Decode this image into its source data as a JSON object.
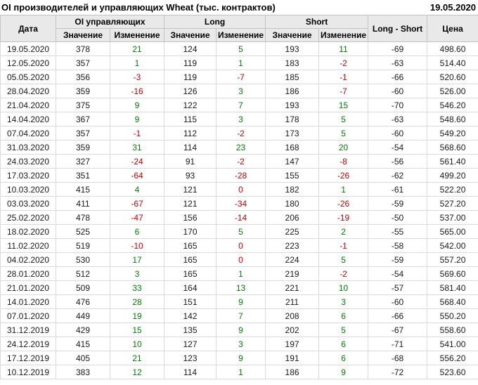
{
  "header": {
    "title": "OI производителей и управляющих Wheat (тыс. контрактов)",
    "report_date": "19.05.2020"
  },
  "colors": {
    "positive": "#008000",
    "negative": "#cc0000",
    "header_bg": "#e9e9e9",
    "grid_border": "#dadada"
  },
  "chart_data": {
    "type": "table",
    "title": "OI производителей и управляющих Wheat (тыс. контрактов)",
    "columns": {
      "date": "Дата",
      "group_oi": "OI управляющих",
      "group_long": "Long",
      "group_short": "Short",
      "sub_value": "Значение",
      "sub_change": "Изменение",
      "long_short": "Long - Short",
      "price": "Цена"
    },
    "rows": [
      {
        "date": "19.05.2020",
        "oi_value": 378,
        "oi_change": 21,
        "long_value": 124,
        "long_change": 5,
        "short_value": 193,
        "short_change": 11,
        "long_short": -69,
        "price": "498.60"
      },
      {
        "date": "12.05.2020",
        "oi_value": 357,
        "oi_change": 1,
        "long_value": 119,
        "long_change": 1,
        "short_value": 183,
        "short_change": -2,
        "long_short": -63,
        "price": "514.40"
      },
      {
        "date": "05.05.2020",
        "oi_value": 356,
        "oi_change": -3,
        "long_value": 119,
        "long_change": -7,
        "short_value": 185,
        "short_change": -1,
        "long_short": -66,
        "price": "520.60"
      },
      {
        "date": "28.04.2020",
        "oi_value": 359,
        "oi_change": -16,
        "long_value": 126,
        "long_change": 3,
        "short_value": 186,
        "short_change": -7,
        "long_short": -60,
        "price": "526.00"
      },
      {
        "date": "21.04.2020",
        "oi_value": 375,
        "oi_change": 9,
        "long_value": 122,
        "long_change": 7,
        "short_value": 193,
        "short_change": 15,
        "long_short": -70,
        "price": "546.20"
      },
      {
        "date": "14.04.2020",
        "oi_value": 367,
        "oi_change": 9,
        "long_value": 115,
        "long_change": 3,
        "short_value": 178,
        "short_change": 5,
        "long_short": -63,
        "price": "548.60"
      },
      {
        "date": "07.04.2020",
        "oi_value": 357,
        "oi_change": -1,
        "long_value": 112,
        "long_change": -2,
        "short_value": 173,
        "short_change": 5,
        "long_short": -60,
        "price": "549.20"
      },
      {
        "date": "31.03.2020",
        "oi_value": 359,
        "oi_change": 31,
        "long_value": 114,
        "long_change": 23,
        "short_value": 168,
        "short_change": 20,
        "long_short": -54,
        "price": "568.60"
      },
      {
        "date": "24.03.2020",
        "oi_value": 327,
        "oi_change": -24,
        "long_value": 91,
        "long_change": -2,
        "short_value": 147,
        "short_change": -8,
        "long_short": -56,
        "price": "561.40"
      },
      {
        "date": "17.03.2020",
        "oi_value": 351,
        "oi_change": -64,
        "long_value": 93,
        "long_change": -28,
        "short_value": 155,
        "short_change": -26,
        "long_short": -62,
        "price": "499.20"
      },
      {
        "date": "10.03.2020",
        "oi_value": 415,
        "oi_change": 4,
        "long_value": 121,
        "long_change": 0,
        "short_value": 182,
        "short_change": 1,
        "long_short": -61,
        "price": "522.20"
      },
      {
        "date": "03.03.2020",
        "oi_value": 411,
        "oi_change": -67,
        "long_value": 121,
        "long_change": -34,
        "short_value": 180,
        "short_change": -26,
        "long_short": -59,
        "price": "527.20"
      },
      {
        "date": "25.02.2020",
        "oi_value": 478,
        "oi_change": -47,
        "long_value": 156,
        "long_change": -14,
        "short_value": 206,
        "short_change": -19,
        "long_short": -50,
        "price": "537.00"
      },
      {
        "date": "18.02.2020",
        "oi_value": 525,
        "oi_change": 6,
        "long_value": 170,
        "long_change": 5,
        "short_value": 225,
        "short_change": 2,
        "long_short": -55,
        "price": "565.00"
      },
      {
        "date": "11.02.2020",
        "oi_value": 519,
        "oi_change": -10,
        "long_value": 165,
        "long_change": 0,
        "short_value": 223,
        "short_change": -1,
        "long_short": -58,
        "price": "542.00"
      },
      {
        "date": "04.02.2020",
        "oi_value": 530,
        "oi_change": 17,
        "long_value": 165,
        "long_change": 0,
        "short_value": 224,
        "short_change": 5,
        "long_short": -59,
        "price": "557.20"
      },
      {
        "date": "28.01.2020",
        "oi_value": 512,
        "oi_change": 3,
        "long_value": 165,
        "long_change": 1,
        "short_value": 219,
        "short_change": -2,
        "long_short": -54,
        "price": "569.60"
      },
      {
        "date": "21.01.2020",
        "oi_value": 509,
        "oi_change": 33,
        "long_value": 164,
        "long_change": 13,
        "short_value": 221,
        "short_change": 10,
        "long_short": -57,
        "price": "581.40"
      },
      {
        "date": "14.01.2020",
        "oi_value": 476,
        "oi_change": 28,
        "long_value": 151,
        "long_change": 9,
        "short_value": 211,
        "short_change": 3,
        "long_short": -60,
        "price": "568.40"
      },
      {
        "date": "07.01.2020",
        "oi_value": 449,
        "oi_change": 19,
        "long_value": 142,
        "long_change": 7,
        "short_value": 208,
        "short_change": 6,
        "long_short": -66,
        "price": "550.20"
      },
      {
        "date": "31.12.2019",
        "oi_value": 429,
        "oi_change": 15,
        "long_value": 135,
        "long_change": 9,
        "short_value": 202,
        "short_change": 5,
        "long_short": -67,
        "price": "558.60"
      },
      {
        "date": "24.12.2019",
        "oi_value": 415,
        "oi_change": 10,
        "long_value": 127,
        "long_change": 3,
        "short_value": 197,
        "short_change": 6,
        "long_short": -71,
        "price": "541.00"
      },
      {
        "date": "17.12.2019",
        "oi_value": 405,
        "oi_change": 21,
        "long_value": 123,
        "long_change": 9,
        "short_value": 191,
        "short_change": 6,
        "long_short": -68,
        "price": "556.20"
      },
      {
        "date": "10.12.2019",
        "oi_value": 383,
        "oi_change": 12,
        "long_value": 114,
        "long_change": 1,
        "short_value": 186,
        "short_change": 9,
        "long_short": -72,
        "price": "523.60"
      }
    ]
  }
}
